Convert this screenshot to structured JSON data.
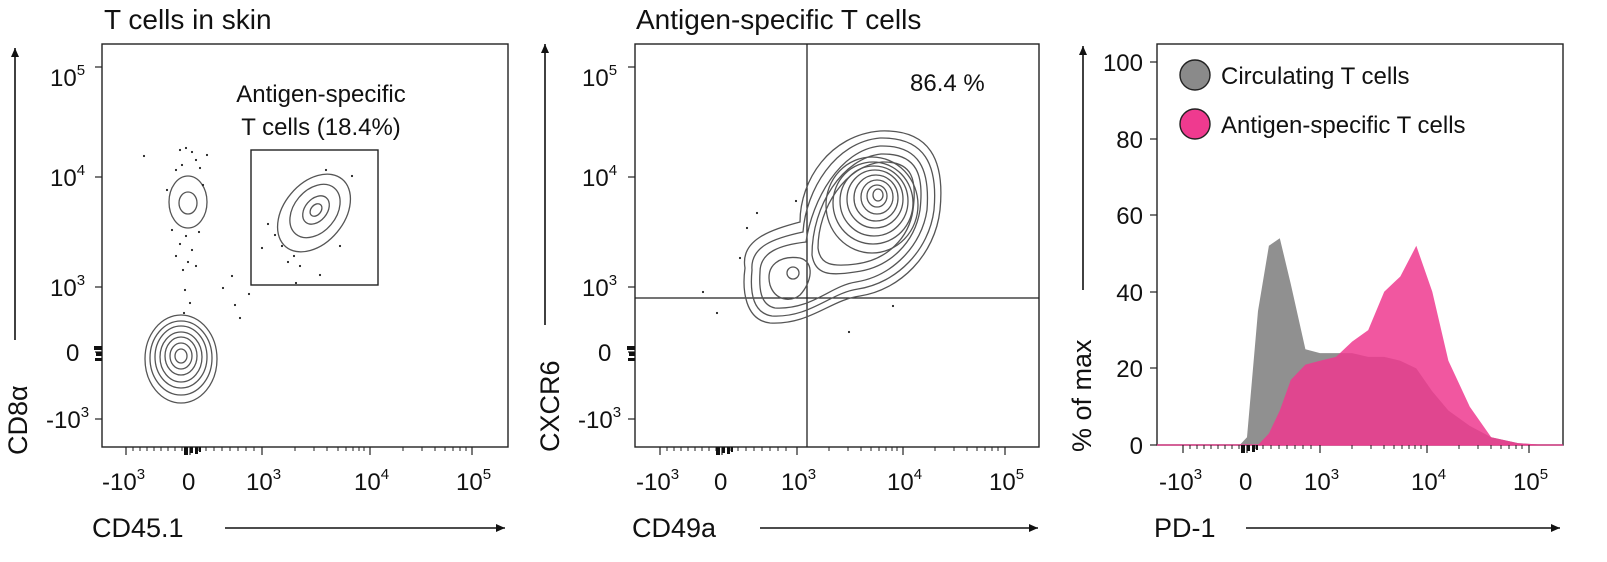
{
  "chart_data": [
    {
      "type": "contour",
      "title": "T cells in skin",
      "xlabel": "CD45.1",
      "ylabel": "CD8α",
      "xticks": [
        "-10",
        "0",
        "10",
        "10",
        "10"
      ],
      "xtick_exponents": [
        "3",
        "",
        "3",
        "4",
        "5"
      ],
      "yticks": [
        "10",
        "10",
        "10",
        "0",
        "-10"
      ],
      "ytick_exponents": [
        "5",
        "4",
        "3",
        "",
        "3"
      ],
      "gate": {
        "label_line1": "Antigen-specific",
        "label_line2": "T cells (18.4%)",
        "percent": 18.4
      },
      "populations": [
        {
          "name": "double-negative cluster",
          "x_decade": 0,
          "y_decade": 0
        },
        {
          "name": "CD8 positive cluster",
          "x_decade": 0,
          "y_decade": 3.8
        },
        {
          "name": "antigen-specific cluster",
          "x_decade": 3.5,
          "y_decade": 3.7
        }
      ]
    },
    {
      "type": "contour",
      "title": "Antigen-specific T cells",
      "xlabel": "CD49a",
      "ylabel": "CXCR6",
      "xticks": [
        "-10",
        "0",
        "10",
        "10",
        "10"
      ],
      "xtick_exponents": [
        "3",
        "",
        "3",
        "4",
        "5"
      ],
      "yticks": [
        "10",
        "10",
        "10",
        "0",
        "-10"
      ],
      "ytick_exponents": [
        "5",
        "4",
        "3",
        "",
        "3"
      ],
      "quadrant": {
        "upper_right_label": "86.4 %",
        "upper_right_percent": 86.4
      },
      "populations": [
        {
          "name": "main cluster",
          "x_decade": 3.9,
          "y_decade": 3.9
        }
      ]
    },
    {
      "type": "area",
      "title": "",
      "xlabel": "PD-1",
      "ylabel": "% of max",
      "xticks": [
        "-10",
        "0",
        "10",
        "10",
        "10"
      ],
      "xtick_exponents": [
        "3",
        "",
        "3",
        "4",
        "5"
      ],
      "yticks": [
        "0",
        "20",
        "40",
        "60",
        "80",
        "100"
      ],
      "ylim": [
        0,
        100
      ],
      "x": [
        -1.0,
        -0.1,
        0.0,
        0.15,
        0.3,
        0.45,
        0.6,
        0.8,
        1.0,
        1.15,
        1.3,
        1.45,
        1.6,
        1.75,
        1.9,
        2.05,
        2.2,
        2.4,
        2.6,
        2.85,
        3.1
      ],
      "legend": {
        "position": "top-left"
      },
      "series": [
        {
          "name": "Circulating T cells",
          "color": "#8a8a8a",
          "values": [
            0,
            0,
            2,
            35,
            52,
            54,
            42,
            25,
            24,
            24,
            24,
            23,
            23,
            22,
            20,
            14,
            9,
            5,
            2,
            0.5,
            0
          ]
        },
        {
          "name": "Antigen-specific T cells",
          "color": "#ef3a8f",
          "values": [
            0,
            0,
            0,
            0,
            3,
            9,
            17,
            21,
            22,
            23,
            27,
            30,
            40,
            44,
            52,
            40,
            22,
            10,
            2,
            0.5,
            0
          ]
        }
      ]
    }
  ]
}
